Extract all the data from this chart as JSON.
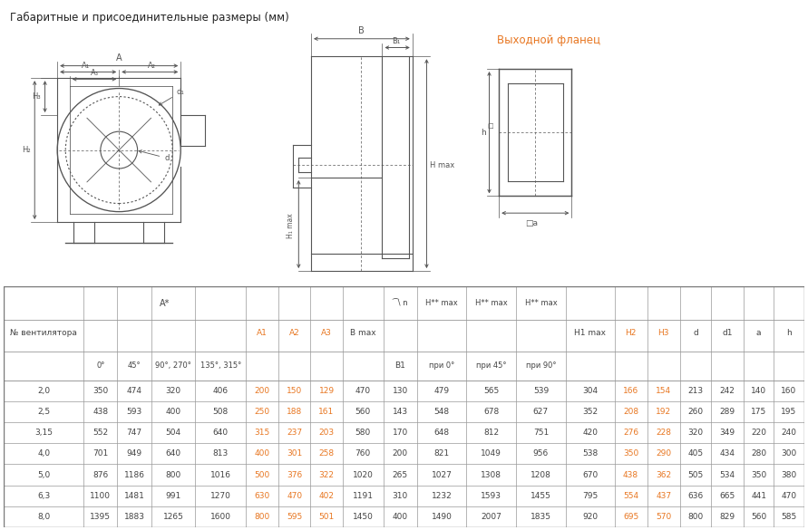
{
  "title": "Габаритные и присоединительные размеры (мм)",
  "flanec_title": "Выходной фланец",
  "rows": [
    [
      "2,0",
      350,
      474,
      320,
      406,
      200,
      150,
      129,
      470,
      130,
      479,
      565,
      539,
      304,
      166,
      154,
      213,
      242,
      140,
      160
    ],
    [
      "2,5",
      438,
      593,
      400,
      508,
      250,
      188,
      161,
      560,
      143,
      548,
      678,
      627,
      352,
      208,
      192,
      260,
      289,
      175,
      195
    ],
    [
      "3,15",
      552,
      747,
      504,
      640,
      315,
      237,
      203,
      580,
      170,
      648,
      812,
      751,
      420,
      276,
      228,
      320,
      349,
      220,
      240
    ],
    [
      "4,0",
      701,
      949,
      640,
      813,
      400,
      301,
      258,
      760,
      200,
      821,
      1049,
      956,
      538,
      350,
      290,
      405,
      434,
      280,
      300
    ],
    [
      "5,0",
      876,
      1186,
      800,
      1016,
      500,
      376,
      322,
      1020,
      265,
      1027,
      1308,
      1208,
      670,
      438,
      362,
      505,
      534,
      350,
      380
    ],
    [
      "6,3",
      1100,
      1481,
      991,
      1270,
      630,
      470,
      402,
      1191,
      310,
      1232,
      1593,
      1455,
      795,
      554,
      437,
      636,
      665,
      441,
      470
    ],
    [
      "8,0",
      1395,
      1883,
      1265,
      1600,
      800,
      595,
      501,
      1450,
      400,
      1490,
      2007,
      1835,
      920,
      695,
      570,
      800,
      829,
      560,
      585
    ]
  ],
  "cyan_col_indices": [
    5,
    6,
    7,
    14,
    15
  ],
  "cyan_color": "#e87722",
  "gray_color": "#444444",
  "border_color": "#aaaaaa",
  "title_color": "#222222",
  "flanec_title_color": "#e87722",
  "line_color": "#555555"
}
